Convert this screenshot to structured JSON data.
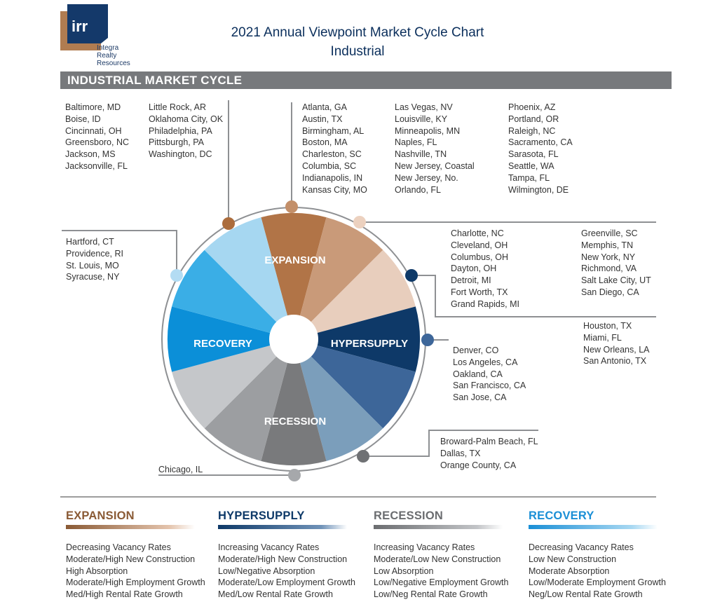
{
  "logo": {
    "mark": "irr",
    "lines": [
      "Integra",
      "Realty",
      "Resources"
    ]
  },
  "title": {
    "line1": "2021 Annual Viewpoint Market Cycle Chart",
    "line2": "Industrial"
  },
  "banner": "INDUSTRIAL MARKET CYCLE",
  "phase_labels": {
    "expansion": "EXPANSION",
    "hypersupply": "HYPERSUPPLY",
    "recession": "RECESSION",
    "recovery": "RECOVERY"
  },
  "colors": {
    "expansion": [
      "#b17447",
      "#c99a79",
      "#e8cebd"
    ],
    "hypersupply": [
      "#0e3968",
      "#3d6699",
      "#7b9ebb"
    ],
    "recession": [
      "#797a7c",
      "#9c9ea1",
      "#c5c7ca"
    ],
    "recovery": [
      "#0b8fd8",
      "#3aaee6",
      "#a6d7f1"
    ],
    "banner": "#77797c",
    "title": "#0b2f5c"
  },
  "city_groups": {
    "g1": [
      "Baltimore, MD",
      "Boise, ID",
      "Cincinnati, OH",
      "Greensboro, NC",
      "Jackson, MS",
      "Jacksonville, FL"
    ],
    "g2": [
      "Little Rock, AR",
      "Oklahoma City, OK",
      "Philadelphia, PA",
      "Pittsburgh, PA",
      "Washington, DC"
    ],
    "g3": [
      "Atlanta, GA",
      "Austin, TX",
      "Birmingham, AL",
      "Boston, MA",
      "Charleston, SC",
      "Columbia, SC",
      "Indianapolis, IN",
      "Kansas City, MO"
    ],
    "g4": [
      "Las Vegas, NV",
      "Louisville, KY",
      "Minneapolis, MN",
      "Naples, FL",
      "Nashville, TN",
      "New Jersey, Coastal",
      "New Jersey, No.",
      "Orlando, FL"
    ],
    "g5": [
      "Phoenix, AZ",
      "Portland, OR",
      "Raleigh, NC",
      "Sacramento, CA",
      "Sarasota, FL",
      "Seattle, WA",
      "Tampa, FL",
      "Wilmington, DE"
    ],
    "g6": [
      "Hartford, CT",
      "Providence, RI",
      "St. Louis, MO",
      "Syracuse, NY"
    ],
    "g7": [
      "Charlotte, NC",
      "Cleveland, OH",
      "Columbus, OH",
      "Dayton, OH",
      "Detroit, MI",
      "Fort Worth, TX",
      "Grand Rapids, MI"
    ],
    "g8": [
      "Greenville, SC",
      "Memphis, TN",
      "New York, NY",
      "Richmond, VA",
      "Salt Lake City, UT",
      "San Diego, CA"
    ],
    "g9": [
      "Houston, TX",
      "Miami, FL",
      "New Orleans, LA",
      "San Antonio, TX"
    ],
    "g10": [
      "Denver, CO",
      "Los Angeles, CA",
      "Oakland, CA",
      "San Francisco, CA",
      "San Jose, CA"
    ],
    "g11": [
      "Broward-Palm Beach, FL",
      "Dallas, TX",
      "Orange County, CA"
    ],
    "g12": [
      "Chicago, IL"
    ]
  },
  "legend": [
    {
      "title": "EXPANSION",
      "color": "#8a5a35",
      "items": [
        "Decreasing Vacancy Rates",
        "Moderate/High New Construction",
        "High Absorption",
        "Moderate/High Employment Growth",
        "Med/High Rental Rate Growth"
      ]
    },
    {
      "title": "HYPERSUPPLY",
      "color": "#0e3968",
      "items": [
        "Increasing Vacancy Rates",
        "Moderate/High New Construction",
        "Low/Negative Absorption",
        "Moderate/Low Employment Growth",
        "Med/Low Rental Rate Growth"
      ]
    },
    {
      "title": "RECESSION",
      "color": "#6b6d70",
      "items": [
        "Increasing Vacancy Rates",
        "Moderate/Low New Construction",
        "Low Absorption",
        "Low/Negative Employment Growth",
        "Low/Neg Rental Rate Growth"
      ]
    },
    {
      "title": "RECOVERY",
      "color": "#1a8fd6",
      "items": [
        "Decreasing Vacancy Rates",
        "Low New Construction",
        "Moderate Absorption",
        "Low/Moderate Employment Growth",
        "Neg/Low Rental Rate Growth"
      ]
    }
  ]
}
